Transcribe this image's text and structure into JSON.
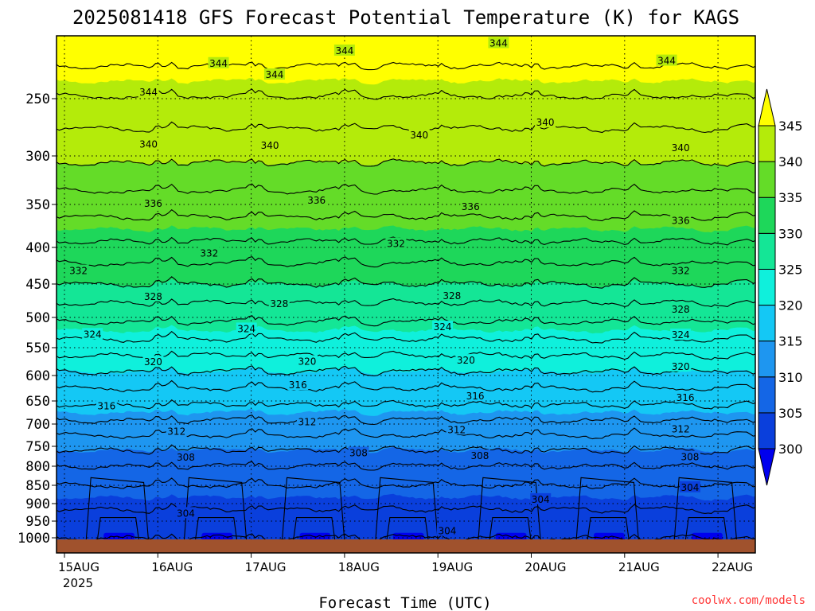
{
  "chart_data": {
    "type": "heatmap",
    "title": "2025081418 GFS Forecast Potential Temperature (K) for KAGS",
    "xlabel": "Forecast Time (UTC)",
    "credit": "coolwx.com/models",
    "x_ticks": [
      "15AUG",
      "16AUG",
      "17AUG",
      "18AUG",
      "19AUG",
      "20AUG",
      "21AUG",
      "22AUG"
    ],
    "x_year_label": "2025",
    "y_ticks": [
      250,
      300,
      350,
      400,
      450,
      500,
      550,
      600,
      650,
      700,
      750,
      800,
      850,
      900,
      950,
      1000
    ],
    "y_axis": {
      "type": "pressure",
      "units": "hPa",
      "inverted": true,
      "range": [
        200,
        1025
      ]
    },
    "colorbar": {
      "ticks": [
        300,
        305,
        310,
        315,
        320,
        325,
        330,
        335,
        340,
        345
      ],
      "extend": "both",
      "bands": [
        {
          "min": 295,
          "max": 300,
          "color": "#0000ee"
        },
        {
          "min": 300,
          "max": 305,
          "color": "#0a3fdc"
        },
        {
          "min": 305,
          "max": 310,
          "color": "#1466e6"
        },
        {
          "min": 310,
          "max": 315,
          "color": "#1e96f0"
        },
        {
          "min": 315,
          "max": 320,
          "color": "#14c8f5"
        },
        {
          "min": 320,
          "max": 325,
          "color": "#0ff0dc"
        },
        {
          "min": 325,
          "max": 330,
          "color": "#14e696"
        },
        {
          "min": 330,
          "max": 335,
          "color": "#1ed75a"
        },
        {
          "min": 335,
          "max": 340,
          "color": "#64dc28"
        },
        {
          "min": 340,
          "max": 345,
          "color": "#b4eb0a"
        },
        {
          "min": 345,
          "max": 350,
          "color": "#ffff00"
        }
      ]
    },
    "ground_color": "#a0522d",
    "contour_labels": [
      {
        "value": 344,
        "x": 1.65,
        "p": 222
      },
      {
        "value": 344,
        "x": 2.25,
        "p": 231
      },
      {
        "value": 344,
        "x": 3.0,
        "p": 212
      },
      {
        "value": 344,
        "x": 4.65,
        "p": 206
      },
      {
        "value": 344,
        "x": 6.45,
        "p": 220
      },
      {
        "value": 344,
        "x": 0.9,
        "p": 245
      },
      {
        "value": 340,
        "x": 0.9,
        "p": 290
      },
      {
        "value": 340,
        "x": 2.2,
        "p": 291
      },
      {
        "value": 340,
        "x": 3.8,
        "p": 282
      },
      {
        "value": 340,
        "x": 5.15,
        "p": 271
      },
      {
        "value": 340,
        "x": 6.6,
        "p": 293
      },
      {
        "value": 336,
        "x": 0.95,
        "p": 349
      },
      {
        "value": 336,
        "x": 2.7,
        "p": 346
      },
      {
        "value": 336,
        "x": 4.35,
        "p": 353
      },
      {
        "value": 336,
        "x": 6.6,
        "p": 369
      },
      {
        "value": 332,
        "x": 0.15,
        "p": 432
      },
      {
        "value": 332,
        "x": 1.55,
        "p": 408
      },
      {
        "value": 332,
        "x": 3.55,
        "p": 396
      },
      {
        "value": 332,
        "x": 6.6,
        "p": 432
      },
      {
        "value": 328,
        "x": 0.95,
        "p": 469
      },
      {
        "value": 328,
        "x": 2.3,
        "p": 480
      },
      {
        "value": 328,
        "x": 4.15,
        "p": 468
      },
      {
        "value": 328,
        "x": 6.6,
        "p": 488
      },
      {
        "value": 324,
        "x": 0.3,
        "p": 528
      },
      {
        "value": 324,
        "x": 1.95,
        "p": 519
      },
      {
        "value": 324,
        "x": 4.05,
        "p": 516
      },
      {
        "value": 324,
        "x": 6.6,
        "p": 529
      },
      {
        "value": 320,
        "x": 0.95,
        "p": 576
      },
      {
        "value": 320,
        "x": 2.6,
        "p": 575
      },
      {
        "value": 320,
        "x": 4.3,
        "p": 573
      },
      {
        "value": 320,
        "x": 6.6,
        "p": 584
      },
      {
        "value": 316,
        "x": 0.45,
        "p": 661
      },
      {
        "value": 316,
        "x": 2.5,
        "p": 619
      },
      {
        "value": 316,
        "x": 4.4,
        "p": 641
      },
      {
        "value": 316,
        "x": 6.65,
        "p": 644
      },
      {
        "value": 312,
        "x": 1.2,
        "p": 717
      },
      {
        "value": 312,
        "x": 2.6,
        "p": 696
      },
      {
        "value": 312,
        "x": 4.2,
        "p": 713
      },
      {
        "value": 312,
        "x": 6.6,
        "p": 712
      },
      {
        "value": 308,
        "x": 1.3,
        "p": 778
      },
      {
        "value": 308,
        "x": 3.15,
        "p": 767
      },
      {
        "value": 308,
        "x": 4.45,
        "p": 774
      },
      {
        "value": 308,
        "x": 6.7,
        "p": 777
      },
      {
        "value": 304,
        "x": 1.3,
        "p": 928
      },
      {
        "value": 304,
        "x": 4.1,
        "p": 980
      },
      {
        "value": 304,
        "x": 5.1,
        "p": 889
      },
      {
        "value": 304,
        "x": 6.7,
        "p": 856
      }
    ]
  }
}
